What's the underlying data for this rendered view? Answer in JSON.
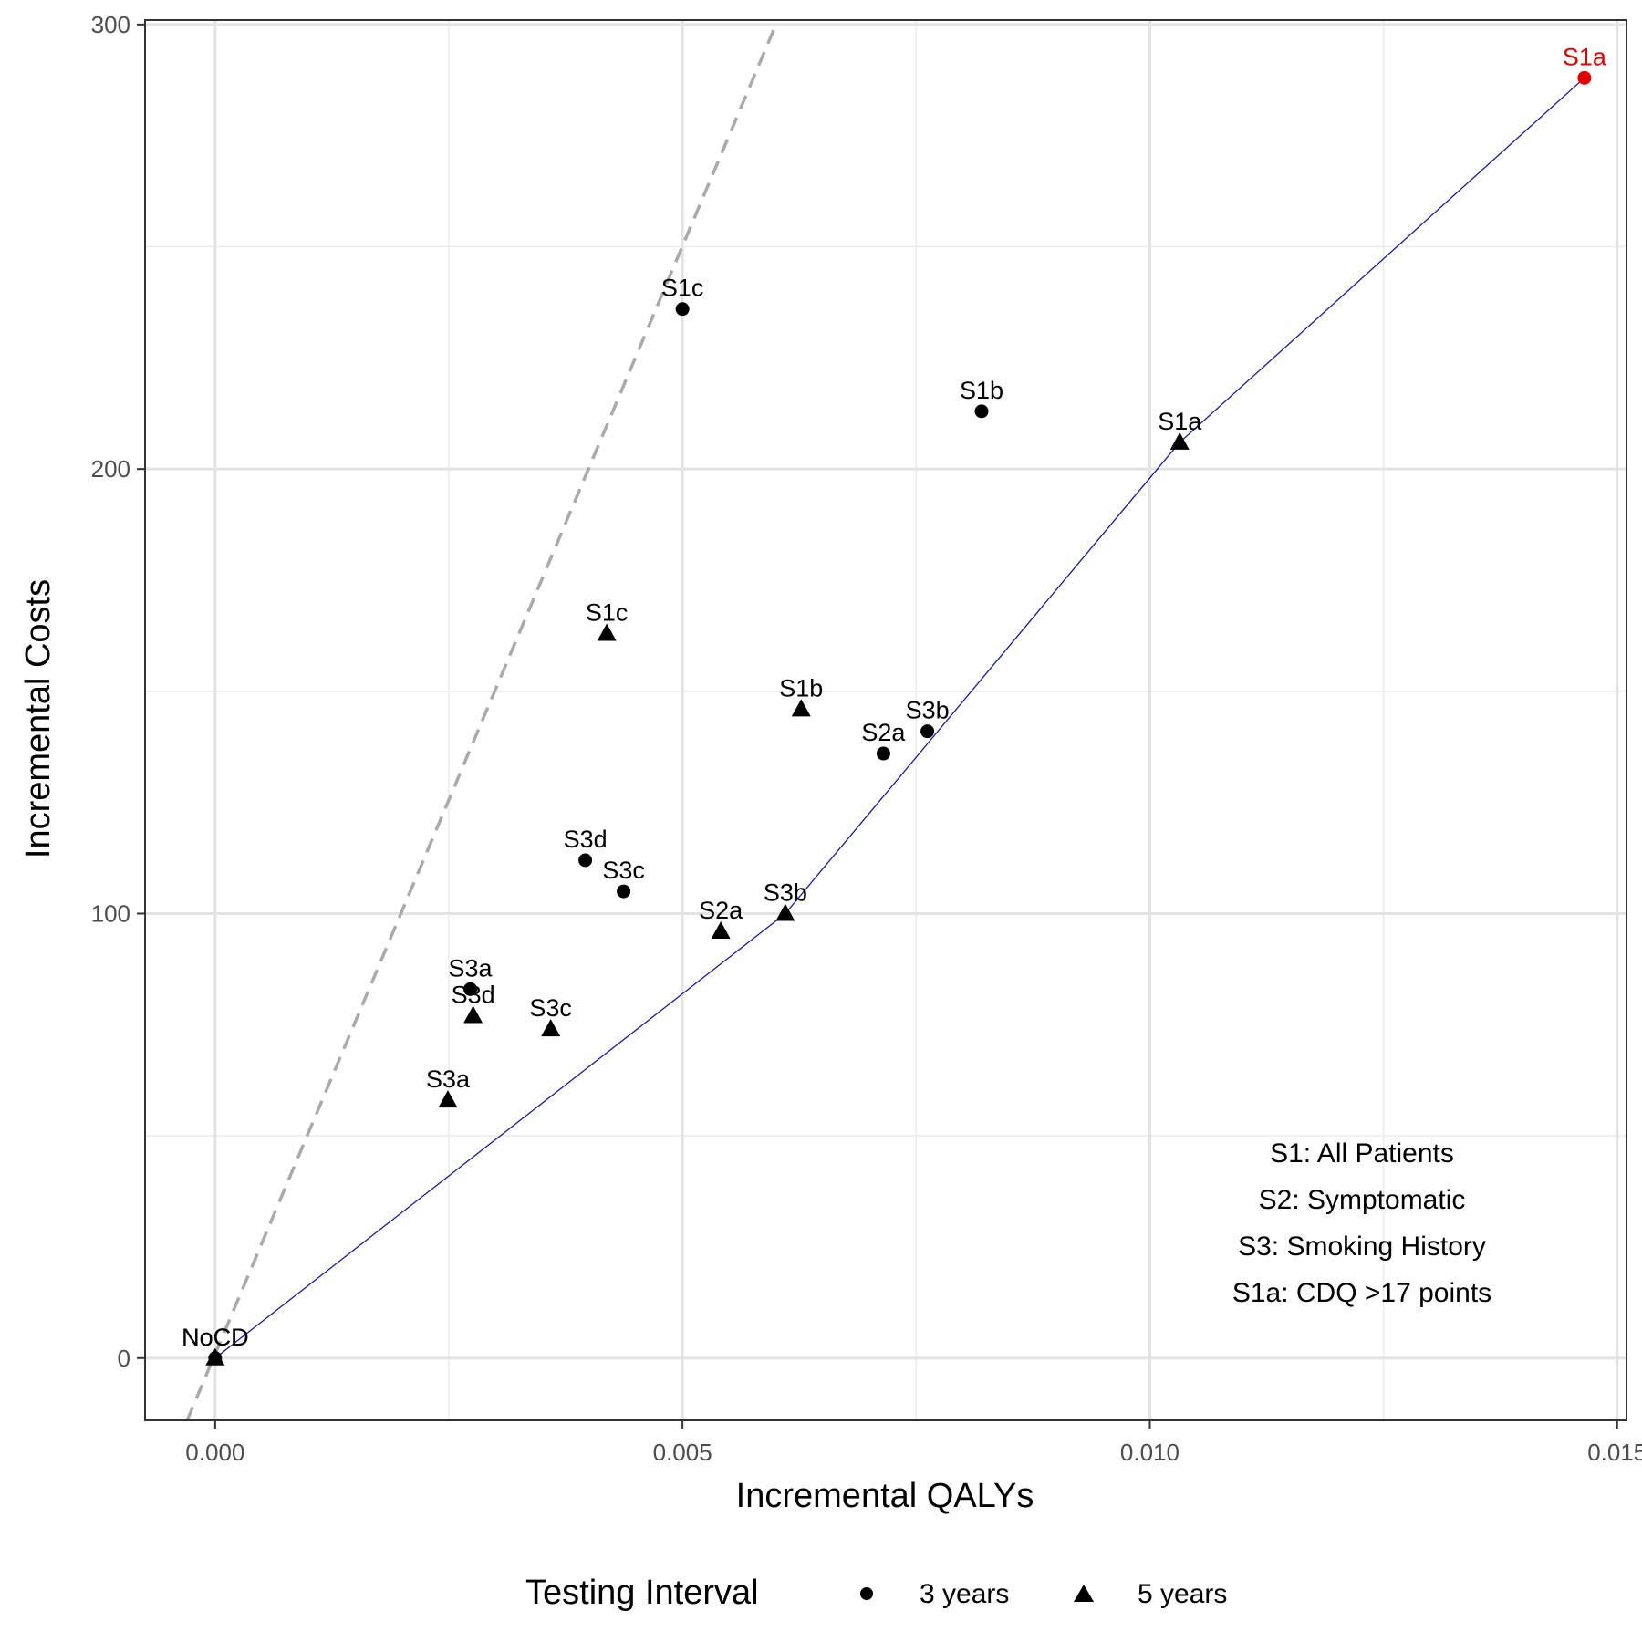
{
  "chart_data": {
    "type": "scatter",
    "xlabel": "Incremental QALYs",
    "ylabel": "Incremental Costs",
    "xlim": [
      -0.00075,
      0.0151
    ],
    "ylim": [
      -14,
      301
    ],
    "x_ticks": [
      0.0,
      0.005,
      0.01,
      0.015
    ],
    "x_tick_labels": [
      "0.000",
      "0.005",
      "0.010",
      "0.015"
    ],
    "y_ticks": [
      0,
      100,
      200,
      300
    ],
    "y_tick_labels": [
      "0",
      "100",
      "200",
      "300"
    ],
    "grid": true,
    "legend": {
      "title": "Testing Interval",
      "placement": "bottom",
      "entries": [
        {
          "label": "3 years",
          "shape": "circle"
        },
        {
          "label": "5 years",
          "shape": "triangle"
        }
      ]
    },
    "series": [
      {
        "name": "3 years",
        "shape": "circle",
        "points": [
          {
            "label": "S1a",
            "x": 0.01465,
            "y": 288,
            "color": "#e00000"
          },
          {
            "label": "S1b",
            "x": 0.0082,
            "y": 213,
            "color": "#000000"
          },
          {
            "label": "S1c",
            "x": 0.005,
            "y": 236,
            "color": "#000000"
          },
          {
            "label": "S2a",
            "x": 0.00715,
            "y": 136,
            "color": "#000000"
          },
          {
            "label": "S3a",
            "x": 0.00273,
            "y": 83,
            "color": "#000000"
          },
          {
            "label": "S3b",
            "x": 0.00762,
            "y": 141,
            "color": "#000000"
          },
          {
            "label": "S3c",
            "x": 0.00437,
            "y": 105,
            "color": "#000000"
          },
          {
            "label": "S3d",
            "x": 0.00396,
            "y": 112,
            "color": "#000000"
          },
          {
            "label": "NoCD",
            "x": 0.0,
            "y": 0,
            "color": "#000000"
          }
        ]
      },
      {
        "name": "5 years",
        "shape": "triangle",
        "points": [
          {
            "label": "S1a",
            "x": 0.01032,
            "y": 206,
            "color": "#000000"
          },
          {
            "label": "S1b",
            "x": 0.00627,
            "y": 146,
            "color": "#000000"
          },
          {
            "label": "S1c",
            "x": 0.00419,
            "y": 163,
            "color": "#000000"
          },
          {
            "label": "S2a",
            "x": 0.00541,
            "y": 96,
            "color": "#000000"
          },
          {
            "label": "S3a",
            "x": 0.00249,
            "y": 58,
            "color": "#000000"
          },
          {
            "label": "S3b",
            "x": 0.0061,
            "y": 100,
            "color": "#000000"
          },
          {
            "label": "S3c",
            "x": 0.00359,
            "y": 74,
            "color": "#000000"
          },
          {
            "label": "S3d",
            "x": 0.00276,
            "y": 77,
            "color": "#000000"
          },
          {
            "label": "NoCD",
            "x": 0.0,
            "y": 0,
            "color": "#000000"
          }
        ]
      }
    ],
    "frontier": {
      "color": "#1a1a99",
      "points": [
        [
          0.0,
          0
        ],
        [
          0.0061,
          100
        ],
        [
          0.01032,
          206
        ],
        [
          0.01465,
          288
        ]
      ]
    },
    "threshold_line": {
      "color": "#aaaaaa",
      "style": "dashed",
      "points": [
        [
          -0.0003,
          -14
        ],
        [
          0.006,
          300
        ]
      ]
    },
    "annotations": [
      "S1: All Patients",
      "S2: Symptomatic",
      "S3: Smoking History",
      "S1a: CDQ >17 points"
    ]
  }
}
